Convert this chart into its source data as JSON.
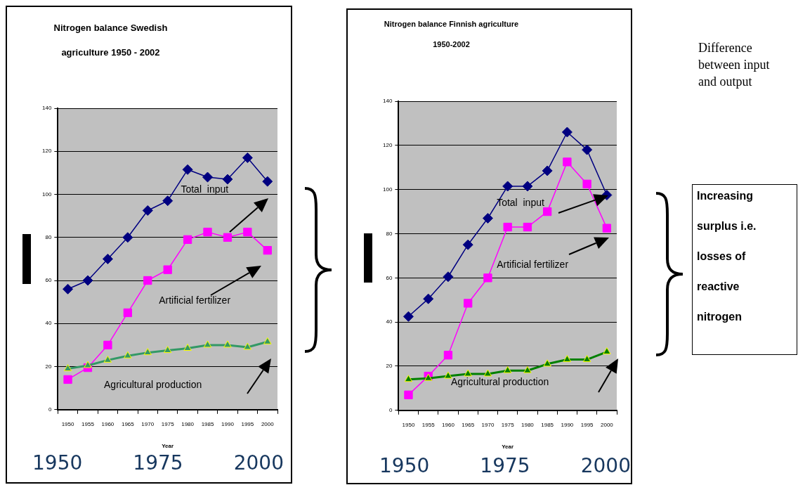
{
  "chart_data": [
    {
      "type": "line",
      "title": "Nitrogen balance Swedish agriculture 1950 - 2002",
      "xlabel": "Year",
      "categories": [
        "1950",
        "1955",
        "1960",
        "1965",
        "1970",
        "1975",
        "1980",
        "1985",
        "1990",
        "1995",
        "2000"
      ],
      "series": [
        {
          "name": "Total  input",
          "color": "#000080",
          "marker": "diamond",
          "values": [
            56,
            60,
            70,
            80,
            92.5,
            97,
            111.5,
            108,
            107,
            117,
            106
          ]
        },
        {
          "name": "Artificial fertilizer",
          "color": "#ff00ff",
          "marker": "square",
          "values": [
            14,
            19.5,
            30,
            45,
            60,
            65,
            79,
            82.5,
            80,
            82.5,
            74
          ]
        },
        {
          "name": "Agricultural production",
          "color": "#339966",
          "marker": "triangle",
          "values": [
            19,
            20.5,
            23,
            25,
            26.5,
            27.5,
            28.5,
            30,
            30,
            29,
            31.5
          ]
        }
      ],
      "ylim": [
        0,
        140
      ],
      "yticks": [
        0,
        20,
        40,
        60,
        80,
        100,
        120,
        140
      ],
      "grid": "y",
      "legend": false,
      "annotations": [
        "1950",
        "1975",
        "2000"
      ]
    },
    {
      "type": "line",
      "title": "Nitrogen balance Finnish agriculture 1950-2002",
      "xlabel": "Year",
      "categories": [
        "1950",
        "1955",
        "1960",
        "1965",
        "1970",
        "1975",
        "1980",
        "1985",
        "1990",
        "1995",
        "2000"
      ],
      "series": [
        {
          "name": "Total  input",
          "color": "#000080",
          "marker": "diamond",
          "values": [
            42.5,
            50.5,
            60.5,
            75,
            87,
            101.5,
            101.5,
            108.5,
            126,
            118,
            97.5
          ]
        },
        {
          "name": "Artificial fertilizer",
          "color": "#ff00ff",
          "marker": "square",
          "values": [
            7,
            15.5,
            25,
            48.5,
            60,
            83,
            83,
            90,
            112.5,
            102.5,
            82.5
          ]
        },
        {
          "name": "Agricultural production",
          "color": "#008000",
          "marker": "triangle",
          "values": [
            14,
            14.5,
            15.5,
            16.5,
            16.5,
            18,
            18,
            21,
            23,
            23,
            26.5
          ]
        }
      ],
      "ylim": [
        0,
        140
      ],
      "yticks": [
        0,
        20,
        40,
        60,
        80,
        100,
        120,
        140
      ],
      "grid": "y",
      "legend": false,
      "annotations": [
        "1950",
        "1975",
        "2000"
      ]
    },
    {
      "type": "other",
      "annotations": [
        "Difference between input and output",
        "Increasing surplus i.e. losses of reactive nitrogen"
      ]
    }
  ]
}
